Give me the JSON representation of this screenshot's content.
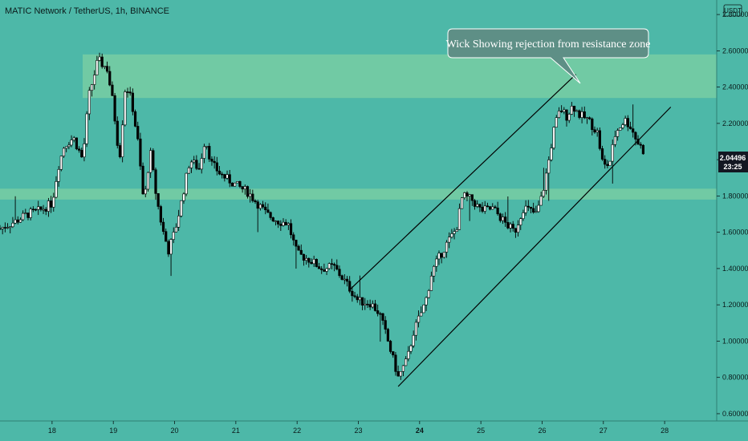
{
  "chart_data": {
    "type": "candlestick",
    "title": "MATIC Network / TetherUS, 1h, BINANCE",
    "currency_badge": "USDT",
    "y_ticks": [
      "0.60000",
      "0.80000",
      "1.00000",
      "1.20000",
      "1.40000",
      "1.60000",
      "1.80000",
      "2.00000",
      "2.20000",
      "2.40000",
      "2.60000",
      "2.80000"
    ],
    "ylim": [
      0.56,
      2.88
    ],
    "x_ticks": [
      {
        "label": "18",
        "day": 18,
        "bold": false
      },
      {
        "label": "19",
        "day": 19,
        "bold": false
      },
      {
        "label": "20",
        "day": 20,
        "bold": false
      },
      {
        "label": "21",
        "day": 21,
        "bold": false
      },
      {
        "label": "22",
        "day": 22,
        "bold": false
      },
      {
        "label": "23",
        "day": 23,
        "bold": false
      },
      {
        "label": "24",
        "day": 24,
        "bold": true
      },
      {
        "label": "25",
        "day": 25,
        "bold": false
      },
      {
        "label": "26",
        "day": 26,
        "bold": false
      },
      {
        "label": "27",
        "day": 27,
        "bold": false
      },
      {
        "label": "28",
        "day": 28,
        "bold": false
      }
    ],
    "xlim": [
      17.15,
      28.85
    ],
    "last_price": "2.04496",
    "countdown": "23:25",
    "annotation": "Wick Showing rejection from resistance zone",
    "zones": [
      {
        "name": "resistance",
        "from": 2.34,
        "to": 2.58,
        "start_day": 18.5
      },
      {
        "name": "support",
        "from": 1.78,
        "to": 1.84,
        "start_day": 17.15
      }
    ],
    "trendlines": [
      {
        "name": "upper-channel",
        "from": {
          "day": 22.85,
          "price": 1.28
        },
        "to": {
          "day": 26.55,
          "price": 2.47
        }
      },
      {
        "name": "lower-channel",
        "from": {
          "day": 23.65,
          "price": 0.75
        },
        "to": {
          "day": 28.1,
          "price": 2.29
        }
      }
    ],
    "close_path": [
      [
        17.15,
        1.62
      ],
      [
        17.4,
        1.66
      ],
      [
        17.6,
        1.7
      ],
      [
        17.8,
        1.72
      ],
      [
        18.0,
        1.76
      ],
      [
        18.1,
        1.96
      ],
      [
        18.2,
        2.08
      ],
      [
        18.35,
        2.12
      ],
      [
        18.5,
        2.0
      ],
      [
        18.6,
        2.35
      ],
      [
        18.75,
        2.55
      ],
      [
        18.9,
        2.5
      ],
      [
        19.0,
        2.3
      ],
      [
        19.1,
        2.0
      ],
      [
        19.2,
        2.42
      ],
      [
        19.3,
        2.32
      ],
      [
        19.4,
        2.1
      ],
      [
        19.5,
        1.75
      ],
      [
        19.6,
        2.05
      ],
      [
        19.7,
        1.8
      ],
      [
        19.8,
        1.62
      ],
      [
        19.9,
        1.5
      ],
      [
        20.0,
        1.6
      ],
      [
        20.1,
        1.75
      ],
      [
        20.25,
        2.0
      ],
      [
        20.4,
        1.95
      ],
      [
        20.5,
        2.12
      ],
      [
        20.6,
        1.98
      ],
      [
        20.75,
        1.92
      ],
      [
        21.0,
        1.86
      ],
      [
        21.2,
        1.82
      ],
      [
        21.5,
        1.7
      ],
      [
        21.7,
        1.66
      ],
      [
        21.85,
        1.65
      ],
      [
        22.0,
        1.48
      ],
      [
        22.2,
        1.45
      ],
      [
        22.4,
        1.4
      ],
      [
        22.6,
        1.41
      ],
      [
        22.8,
        1.32
      ],
      [
        23.0,
        1.22
      ],
      [
        23.2,
        1.21
      ],
      [
        23.35,
        1.15
      ],
      [
        23.5,
        0.98
      ],
      [
        23.65,
        0.8
      ],
      [
        23.8,
        0.9
      ],
      [
        23.9,
        1.05
      ],
      [
        24.1,
        1.22
      ],
      [
        24.2,
        1.38
      ],
      [
        24.3,
        1.45
      ],
      [
        24.45,
        1.54
      ],
      [
        24.6,
        1.62
      ],
      [
        24.7,
        1.8
      ],
      [
        24.85,
        1.78
      ],
      [
        25.0,
        1.72
      ],
      [
        25.2,
        1.73
      ],
      [
        25.4,
        1.65
      ],
      [
        25.55,
        1.6
      ],
      [
        25.7,
        1.74
      ],
      [
        25.9,
        1.7
      ],
      [
        26.0,
        1.8
      ],
      [
        26.1,
        1.98
      ],
      [
        26.2,
        2.18
      ],
      [
        26.3,
        2.28
      ],
      [
        26.4,
        2.24
      ],
      [
        26.5,
        2.3
      ],
      [
        26.6,
        2.25
      ],
      [
        26.75,
        2.22
      ],
      [
        26.9,
        2.15
      ],
      [
        27.0,
        1.96
      ],
      [
        27.1,
        1.98
      ],
      [
        27.2,
        2.15
      ],
      [
        27.35,
        2.22
      ],
      [
        27.45,
        2.18
      ],
      [
        27.55,
        2.1
      ],
      [
        27.65,
        2.05
      ]
    ]
  }
}
